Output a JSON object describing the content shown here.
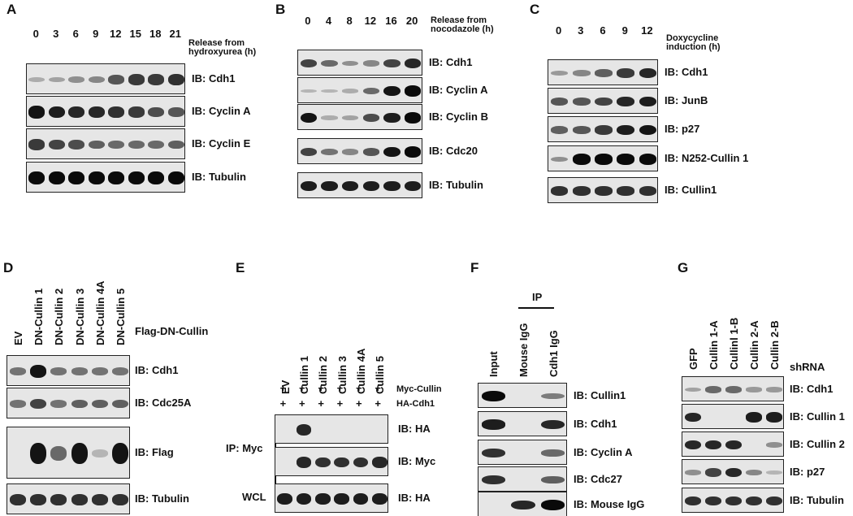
{
  "panels": [
    {
      "letter": "A",
      "timepoints": [
        "0",
        "3",
        "6",
        "9",
        "12",
        "15",
        "18",
        "21"
      ],
      "condition": "Release from hydroxyurea (h)",
      "blots": [
        {
          "label": "IB: Cdh1",
          "intensities": [
            0.15,
            0.2,
            0.3,
            0.35,
            0.6,
            0.75,
            0.75,
            0.8
          ]
        },
        {
          "label": "IB: Cyclin A",
          "intensities": [
            0.95,
            0.9,
            0.85,
            0.85,
            0.8,
            0.75,
            0.65,
            0.6
          ]
        },
        {
          "label": "IB: Cyclin E",
          "intensities": [
            0.75,
            0.7,
            0.65,
            0.55,
            0.5,
            0.5,
            0.5,
            0.55
          ]
        },
        {
          "label": "IB: Tubulin",
          "intensities": [
            1,
            1,
            1,
            1,
            1,
            1,
            1,
            1
          ]
        }
      ]
    },
    {
      "letter": "B",
      "timepoints": [
        "0",
        "4",
        "8",
        "12",
        "16",
        "20"
      ],
      "condition": "Release from nocodazole (h)",
      "blots": [
        {
          "label": "IB: Cdh1",
          "intensities": [
            0.7,
            0.5,
            0.3,
            0.35,
            0.7,
            0.85
          ]
        },
        {
          "label": "IB: Cyclin A",
          "intensities": [
            0.1,
            0.1,
            0.15,
            0.5,
            0.95,
            1
          ]
        },
        {
          "label": "IB: Cyclin B",
          "intensities": [
            0.95,
            0.15,
            0.2,
            0.65,
            0.9,
            1
          ]
        },
        {
          "label": "IB: Cdc20",
          "intensities": [
            0.7,
            0.45,
            0.35,
            0.6,
            0.95,
            1
          ]
        },
        {
          "label": "IB: Tubulin",
          "intensities": [
            0.9,
            0.9,
            0.9,
            0.9,
            0.9,
            0.9
          ]
        }
      ]
    },
    {
      "letter": "C",
      "timepoints": [
        "0",
        "3",
        "6",
        "9",
        "12"
      ],
      "condition": "Doxycycline induction (h)",
      "blots": [
        {
          "label": "IB: Cdh1",
          "intensities": [
            0.25,
            0.35,
            0.55,
            0.75,
            0.85
          ]
        },
        {
          "label": "IB: JunB",
          "intensities": [
            0.6,
            0.6,
            0.7,
            0.85,
            0.9
          ]
        },
        {
          "label": "IB: p27",
          "intensities": [
            0.55,
            0.6,
            0.75,
            0.9,
            0.95
          ]
        },
        {
          "label": "IB: N252-Cullin 1",
          "intensities": [
            0.3,
            1,
            1,
            1,
            1
          ]
        },
        {
          "label": "IB: Cullin1",
          "intensities": [
            0.8,
            0.8,
            0.8,
            0.8,
            0.8
          ]
        }
      ]
    },
    {
      "letter": "D",
      "lanes": [
        "EV",
        "DN-Cullin 1",
        "DN-Cullin 2",
        "DN-Cullin 3",
        "DN-Cullin 4A",
        "DN-Cullin 5"
      ],
      "header": "Flag-DN-Cullin",
      "blots": [
        {
          "label": "IB:  Cdh1",
          "intensities": [
            0.45,
            0.95,
            0.45,
            0.45,
            0.45,
            0.45
          ]
        },
        {
          "label": "IB:  Cdc25A",
          "intensities": [
            0.45,
            0.7,
            0.45,
            0.55,
            0.55,
            0.55
          ]
        },
        {
          "label": "IB:  Flag",
          "intensities": [
            0,
            0.95,
            0.5,
            0.95,
            0.1,
            0.95
          ]
        },
        {
          "label": "IB:  Tubulin",
          "intensities": [
            0.8,
            0.8,
            0.8,
            0.8,
            0.8,
            0.8
          ]
        }
      ]
    },
    {
      "letter": "E",
      "lanes": [
        "EV",
        "Cullin 1",
        "Cullin 2",
        "Cullin 3",
        "Cullin 4A",
        "Cullin 5"
      ],
      "row1_label": "Myc-Cullin",
      "row2_label": "HA-Cdh1",
      "row1_signs": [
        "+",
        "+",
        "+",
        "+",
        "+",
        "+"
      ],
      "row2_signs": [
        "+",
        "+",
        "+",
        "+",
        "+",
        "+"
      ],
      "ip_label": "IP: Myc",
      "wcl_label": "WCL",
      "blots": [
        {
          "label": "IB: HA",
          "intensities": [
            0,
            0.85,
            0,
            0,
            0,
            0
          ]
        },
        {
          "label": "IB: Myc",
          "intensities": [
            0,
            0.85,
            0.8,
            0.8,
            0.8,
            0.85
          ]
        },
        {
          "label": "IB: HA",
          "intensities": [
            0.9,
            0.9,
            0.9,
            0.9,
            0.9,
            0.9
          ]
        }
      ]
    },
    {
      "letter": "F",
      "lanes": [
        "Input",
        "Mouse IgG",
        "Cdh1 IgG"
      ],
      "ip_header": "IP",
      "blots": [
        {
          "label": "IB: Cullin1",
          "intensities": [
            1,
            0,
            0.4
          ]
        },
        {
          "label": "IB: Cdh1",
          "intensities": [
            0.9,
            0,
            0.85
          ]
        },
        {
          "label": "IB: Cyclin A",
          "intensities": [
            0.8,
            0,
            0.5
          ]
        },
        {
          "label": "IB: Cdc27",
          "intensities": [
            0.8,
            0,
            0.55
          ]
        },
        {
          "label": "IB: Mouse IgG",
          "intensities": [
            0,
            0.85,
            1
          ]
        }
      ]
    },
    {
      "letter": "G",
      "lanes": [
        "GFP",
        "Cullin 1-A",
        "Cullinl 1-B",
        "Cullin 2-A",
        "Cullin 2-B"
      ],
      "header": "shRNA",
      "blots": [
        {
          "label": "IB: Cdh1",
          "intensities": [
            0.2,
            0.5,
            0.5,
            0.25,
            0.25
          ]
        },
        {
          "label": "IB: Cullin 1",
          "intensities": [
            0.85,
            0,
            0,
            0.9,
            0.9
          ]
        },
        {
          "label": "IB: Cullin 2",
          "intensities": [
            0.85,
            0.85,
            0.85,
            0,
            0.3
          ]
        },
        {
          "label": "IB: p27",
          "intensities": [
            0.3,
            0.7,
            0.85,
            0.35,
            0.1
          ]
        },
        {
          "label": "IB: Tubulin",
          "intensities": [
            0.8,
            0.8,
            0.8,
            0.8,
            0.8
          ]
        }
      ]
    }
  ]
}
